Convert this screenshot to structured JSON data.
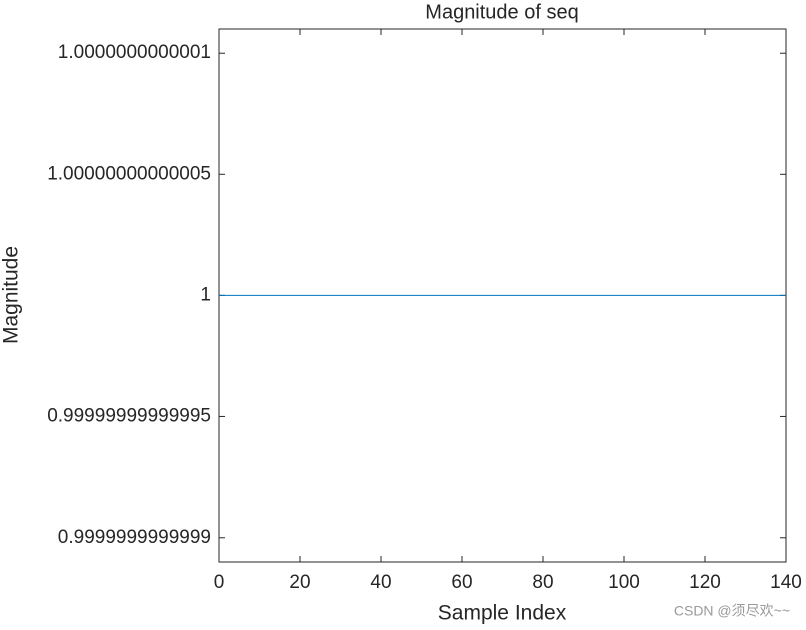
{
  "chart_data": {
    "type": "line",
    "title": "Magnitude of seq",
    "xlabel": "Sample Index",
    "ylabel": "Magnitude",
    "x": [
      0,
      10,
      20,
      30,
      40,
      50,
      60,
      70,
      80,
      90,
      100,
      110,
      120,
      130,
      140
    ],
    "series": [
      {
        "name": "seq",
        "color": "#0072bd",
        "values": [
          1,
          1,
          1,
          1,
          1,
          1,
          1,
          1,
          1,
          1,
          1,
          1,
          1,
          1,
          1
        ]
      }
    ],
    "xlim": [
      0,
      140
    ],
    "xticks": [
      0,
      20,
      40,
      60,
      80,
      100,
      120,
      140
    ],
    "ylim": [
      0.99999999999989,
      1.00000000000011
    ],
    "yticks": [
      {
        "value": 0.9999999999999,
        "label": "0.9999999999999"
      },
      {
        "value": 0.99999999999995,
        "label": "0.99999999999995"
      },
      1,
      {
        "value": 1.00000000000005,
        "label": "1.00000000000005"
      },
      {
        "value": 1.0000000000001,
        "label": "1.0000000000001"
      }
    ],
    "grid": false
  },
  "watermark": "CSDN @须尽欢~~"
}
